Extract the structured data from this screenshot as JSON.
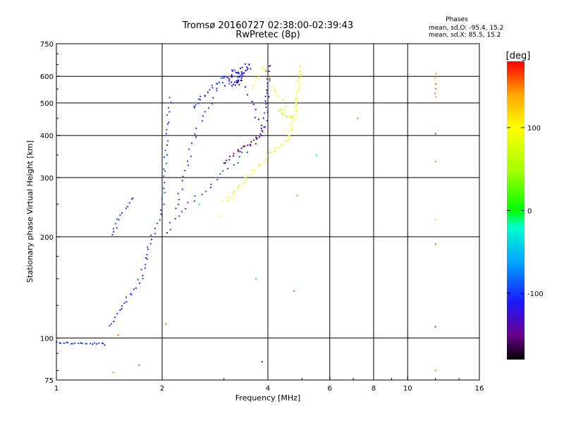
{
  "chart_data": {
    "type": "scatter",
    "title": "Tromsø 20160727 02:38:00-02:39:43",
    "subtitle": "RwPretec (8p)",
    "xlabel": "Frequency [MHz]",
    "ylabel": "Stationary phase Virtual Height [km]",
    "x_scale": "log",
    "y_scale": "log",
    "xlim": [
      1,
      16
    ],
    "ylim": [
      75,
      750
    ],
    "grid": true,
    "x_ticks": [
      {
        "v": 1,
        "label": "1",
        "grid": false
      },
      {
        "v": 2,
        "label": "2",
        "grid": true
      },
      {
        "v": 4,
        "label": "4",
        "grid": true
      },
      {
        "v": 6,
        "label": "6",
        "grid": true
      },
      {
        "v": 8,
        "label": "8",
        "grid": true
      },
      {
        "v": 10,
        "label": "10",
        "grid": true
      },
      {
        "v": 16,
        "label": "16",
        "grid": false
      }
    ],
    "y_ticks": [
      {
        "v": 75,
        "label": "75",
        "grid": false
      },
      {
        "v": 100,
        "label": "100",
        "grid": true
      },
      {
        "v": 200,
        "label": "200",
        "grid": true
      },
      {
        "v": 300,
        "label": "300",
        "grid": true
      },
      {
        "v": 400,
        "label": "400",
        "grid": true
      },
      {
        "v": 500,
        "label": "500",
        "grid": true
      },
      {
        "v": 600,
        "label": "600",
        "grid": true
      },
      {
        "v": 750,
        "label": "750",
        "grid": false
      }
    ],
    "phases": {
      "title": "Phases",
      "line_o": "mean, sd,O: -95.4, 15.2",
      "line_x": "mean, sd,X:  85.5, 15.2"
    },
    "colorbar": {
      "label": "[deg]",
      "range": [
        -180,
        180
      ],
      "ticks": [
        {
          "v": 100,
          "label": "100"
        },
        {
          "v": 0,
          "label": "0"
        },
        {
          "v": -100,
          "label": "-100"
        }
      ],
      "stops": [
        {
          "v": -180,
          "color": "#000000"
        },
        {
          "v": -150,
          "color": "#6a0090"
        },
        {
          "v": -110,
          "color": "#1a1aff"
        },
        {
          "v": -60,
          "color": "#00aaff"
        },
        {
          "v": -20,
          "color": "#00ffcc"
        },
        {
          "v": 0,
          "color": "#00ff00"
        },
        {
          "v": 50,
          "color": "#aaff00"
        },
        {
          "v": 100,
          "color": "#ffff00"
        },
        {
          "v": 140,
          "color": "#ffa500"
        },
        {
          "v": 180,
          "color": "#ff0000"
        }
      ]
    },
    "traces": [
      {
        "phase": -100,
        "spread": 1.2,
        "n": 22,
        "path": [
          [
            1.0,
            97
          ],
          [
            1.1,
            96.5
          ],
          [
            1.25,
            96
          ],
          [
            1.35,
            96.5
          ],
          [
            1.38,
            95
          ]
        ]
      },
      {
        "phase": -105,
        "spread": 3,
        "n": 30,
        "path": [
          [
            1.42,
            108
          ],
          [
            1.48,
            117
          ],
          [
            1.55,
            128
          ],
          [
            1.62,
            135
          ],
          [
            1.68,
            140
          ],
          [
            1.74,
            150
          ],
          [
            1.8,
            168
          ],
          [
            1.86,
            200
          ]
        ]
      },
      {
        "phase": -100,
        "spread": 3,
        "n": 14,
        "path": [
          [
            1.45,
            200
          ],
          [
            1.5,
            225
          ],
          [
            1.58,
            245
          ],
          [
            1.65,
            260
          ]
        ]
      },
      {
        "phase": -95,
        "spread": 2.5,
        "n": 30,
        "path": [
          [
            1.9,
            205
          ],
          [
            1.95,
            225
          ],
          [
            2.0,
            245
          ],
          [
            2.02,
            300
          ],
          [
            2.05,
            360
          ],
          [
            2.08,
            440
          ],
          [
            2.12,
            520
          ]
        ]
      },
      {
        "phase": -95,
        "spread": 3,
        "n": 40,
        "path": [
          [
            2.05,
            205
          ],
          [
            2.15,
            225
          ],
          [
            2.3,
            242
          ],
          [
            2.5,
            260
          ],
          [
            2.7,
            280
          ],
          [
            2.9,
            300
          ],
          [
            3.1,
            320
          ],
          [
            3.3,
            340
          ],
          [
            3.5,
            360
          ],
          [
            3.7,
            380
          ],
          [
            3.85,
            400
          ],
          [
            3.95,
            440
          ],
          [
            4.0,
            520
          ],
          [
            4.0,
            640
          ]
        ]
      },
      {
        "phase": -100,
        "spread": 3,
        "n": 26,
        "path": [
          [
            2.2,
            240
          ],
          [
            2.3,
            300
          ],
          [
            2.4,
            360
          ],
          [
            2.55,
            430
          ],
          [
            2.7,
            480
          ],
          [
            2.85,
            540
          ],
          [
            3.0,
            600
          ]
        ]
      },
      {
        "phase": -98,
        "spread": 2.5,
        "n": 20,
        "path": [
          [
            2.45,
            480
          ],
          [
            2.6,
            520
          ],
          [
            2.8,
            560
          ],
          [
            3.0,
            600
          ]
        ]
      },
      {
        "phase": -115,
        "spread": 4,
        "n": 55,
        "path": [
          [
            3.05,
            570
          ],
          [
            3.15,
            600
          ],
          [
            3.25,
            630
          ],
          [
            3.35,
            610
          ],
          [
            3.2,
            560
          ],
          [
            3.3,
            580
          ],
          [
            3.45,
            640
          ],
          [
            3.6,
            640
          ]
        ]
      },
      {
        "phase": -150,
        "spread": 3,
        "n": 24,
        "path": [
          [
            3.0,
            330
          ],
          [
            3.2,
            350
          ],
          [
            3.4,
            370
          ],
          [
            3.6,
            385
          ],
          [
            3.8,
            400
          ],
          [
            3.9,
            420
          ]
        ]
      },
      {
        "phase": -145,
        "spread": 3,
        "n": 18,
        "path": [
          [
            3.5,
            550
          ],
          [
            3.7,
            460
          ],
          [
            3.85,
            430
          ],
          [
            3.95,
            460
          ],
          [
            4.0,
            550
          ],
          [
            4.02,
            640
          ]
        ]
      },
      {
        "phase": 100,
        "spread": 2.5,
        "n": 36,
        "path": [
          [
            3.0,
            255
          ],
          [
            3.2,
            270
          ],
          [
            3.4,
            290
          ],
          [
            3.6,
            310
          ],
          [
            3.8,
            330
          ],
          [
            4.0,
            350
          ],
          [
            4.2,
            365
          ],
          [
            4.45,
            380
          ],
          [
            4.6,
            400
          ]
        ]
      },
      {
        "phase": 95,
        "spread": 2.5,
        "n": 30,
        "path": [
          [
            4.6,
            400
          ],
          [
            4.7,
            430
          ],
          [
            4.78,
            470
          ],
          [
            4.85,
            520
          ],
          [
            4.9,
            580
          ],
          [
            4.92,
            640
          ]
        ]
      },
      {
        "phase": 105,
        "spread": 3,
        "n": 16,
        "path": [
          [
            3.6,
            560
          ],
          [
            3.75,
            600
          ],
          [
            3.9,
            640
          ],
          [
            4.1,
            560
          ],
          [
            4.3,
            520
          ],
          [
            4.5,
            480
          ]
        ]
      },
      {
        "phase": 60,
        "spread": 3,
        "n": 10,
        "path": [
          [
            4.3,
            480
          ],
          [
            4.5,
            460
          ],
          [
            4.7,
            450
          ]
        ]
      },
      {
        "phase": 150,
        "spread": 1.5,
        "n": 6,
        "path": [
          [
            12.0,
            610
          ],
          [
            12.0,
            520
          ]
        ]
      }
    ],
    "isolated_points": [
      {
        "x": 1.45,
        "y": 79,
        "phase": 150
      },
      {
        "x": 1.72,
        "y": 83,
        "phase": 160
      },
      {
        "x": 1.5,
        "y": 102,
        "phase": 160
      },
      {
        "x": 2.05,
        "y": 110,
        "phase": 150
      },
      {
        "x": 3.3,
        "y": 400,
        "phase": 155
      },
      {
        "x": 3.7,
        "y": 150,
        "phase": -40
      },
      {
        "x": 3.85,
        "y": 85,
        "phase": -140
      },
      {
        "x": 4.85,
        "y": 265,
        "phase": 150
      },
      {
        "x": 4.75,
        "y": 138,
        "phase": -60
      },
      {
        "x": 5.5,
        "y": 350,
        "phase": -20
      },
      {
        "x": 7.2,
        "y": 450,
        "phase": 150
      },
      {
        "x": 12.0,
        "y": 405,
        "phase": -90
      },
      {
        "x": 12.0,
        "y": 335,
        "phase": 150
      },
      {
        "x": 12.0,
        "y": 225,
        "phase": 30
      },
      {
        "x": 12.0,
        "y": 190,
        "phase": 160
      },
      {
        "x": 12.0,
        "y": 108,
        "phase": -90
      },
      {
        "x": 12.0,
        "y": 80,
        "phase": 150
      },
      {
        "x": 12.0,
        "y": 570,
        "phase": 145
      },
      {
        "x": 2.9,
        "y": 230,
        "phase": 90
      },
      {
        "x": 2.55,
        "y": 250,
        "phase": -30
      }
    ]
  }
}
